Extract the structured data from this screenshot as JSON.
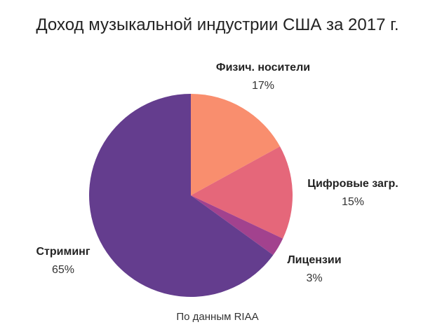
{
  "chart_data": {
    "type": "pie",
    "title": "Доход музыкальной индустрии США за 2017 г.",
    "source": "По данным RIAA",
    "slices": [
      {
        "label": "Физич. носители",
        "value": 17,
        "value_label": "17%",
        "color": "#F98E6E"
      },
      {
        "label": "Цифровые загр.",
        "value": 15,
        "value_label": "15%",
        "color": "#E5677A"
      },
      {
        "label": "Лицензии",
        "value": 3,
        "value_label": "3%",
        "color": "#A2428E"
      },
      {
        "label": "Стриминг",
        "value": 65,
        "value_label": "65%",
        "color": "#643D8E"
      }
    ],
    "start_angle": "12 o'clock",
    "direction": "clockwise"
  }
}
